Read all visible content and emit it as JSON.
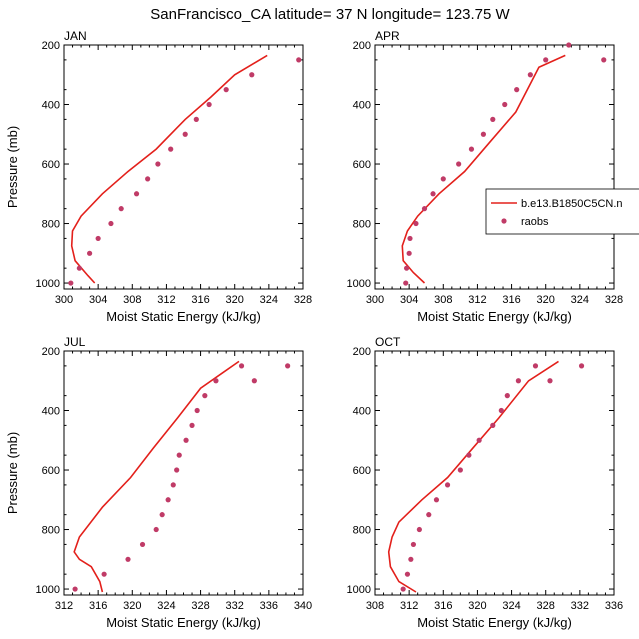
{
  "figure_title": "SanFrancisco_CA  latitude= 37 N longitude= 123.75 W",
  "legend": {
    "model_label": "b.e13.B1850C5CN.n",
    "obs_label": "raobs"
  },
  "colors": {
    "model": "#e3201b",
    "obs": "#c03b67"
  },
  "chart_data": [
    {
      "type": "line",
      "title": "JAN",
      "xlabel": "Moist Static Energy (kJ/kg)",
      "ylabel": "Pressure (mb)",
      "xlim": [
        300,
        328
      ],
      "ylim": [
        1020,
        200
      ],
      "yreverse": true,
      "xticks": [
        300,
        304,
        308,
        312,
        316,
        320,
        324,
        328
      ],
      "yticks": [
        200,
        400,
        600,
        800,
        1000
      ],
      "model": {
        "x": [
          303.6,
          302.8,
          301.3,
          300.9,
          301.0,
          302.0,
          304.5,
          307.5,
          310.8,
          314.2,
          317.2,
          320.0,
          323.8
        ],
        "y": [
          1000,
          975,
          925,
          875,
          825,
          775,
          700,
          625,
          550,
          450,
          375,
          300,
          235
        ]
      },
      "raobs": {
        "x": [
          300.8,
          301.8,
          303.0,
          304.0,
          305.5,
          306.7,
          308.5,
          309.8,
          311.0,
          312.5,
          314.2,
          315.5,
          317.0,
          319.0,
          322.0,
          327.5
        ],
        "y": [
          1000,
          950,
          900,
          850,
          800,
          750,
          700,
          650,
          600,
          550,
          500,
          450,
          400,
          350,
          300,
          250
        ]
      }
    },
    {
      "type": "line",
      "title": "APR",
      "xlabel": "Moist Static Energy (kJ/kg)",
      "ylabel": "",
      "xlim": [
        300,
        328
      ],
      "ylim": [
        1020,
        200
      ],
      "yreverse": true,
      "xticks": [
        300,
        304,
        308,
        312,
        316,
        320,
        324,
        328
      ],
      "yticks": [
        200,
        400,
        600,
        800,
        1000
      ],
      "model": {
        "x": [
          305.8,
          304.5,
          303.3,
          303.2,
          303.8,
          305.0,
          307.5,
          310.5,
          313.5,
          316.5,
          319.2,
          322.3
        ],
        "y": [
          1000,
          965,
          925,
          875,
          825,
          775,
          700,
          625,
          525,
          425,
          275,
          235
        ]
      },
      "raobs": {
        "x": [
          303.6,
          303.7,
          304.0,
          304.1,
          304.8,
          305.8,
          306.8,
          308.0,
          309.8,
          311.3,
          312.7,
          313.8,
          315.2,
          316.6,
          318.2,
          320.0,
          322.7,
          326.8
        ],
        "y": [
          1000,
          950,
          900,
          850,
          800,
          750,
          700,
          650,
          600,
          550,
          500,
          450,
          400,
          350,
          300,
          250,
          200,
          250
        ]
      }
    },
    {
      "type": "line",
      "title": "JUL",
      "xlabel": "Moist Static Energy (kJ/kg)",
      "ylabel": "Pressure (mb)",
      "xlim": [
        312,
        340
      ],
      "ylim": [
        1020,
        200
      ],
      "yreverse": true,
      "xticks": [
        312,
        316,
        320,
        324,
        328,
        332,
        336,
        340
      ],
      "yticks": [
        200,
        400,
        600,
        800,
        1000
      ],
      "model": {
        "x": [
          316.5,
          316.2,
          315.2,
          313.8,
          313.2,
          313.8,
          316.5,
          319.8,
          322.5,
          325.3,
          328.0,
          330.5,
          332.5
        ],
        "y": [
          1010,
          975,
          925,
          900,
          875,
          825,
          725,
          625,
          525,
          425,
          325,
          275,
          235
        ]
      },
      "raobs": {
        "x": [
          313.3,
          316.7,
          319.5,
          321.2,
          322.8,
          323.5,
          324.2,
          324.8,
          325.2,
          325.5,
          326.3,
          327.0,
          327.6,
          328.5,
          329.8,
          332.8,
          334.3,
          338.2
        ],
        "y": [
          1000,
          950,
          900,
          850,
          800,
          750,
          700,
          650,
          600,
          550,
          500,
          450,
          400,
          350,
          300,
          250,
          300,
          250
        ]
      }
    },
    {
      "type": "line",
      "title": "OCT",
      "xlabel": "Moist Static Energy (kJ/kg)",
      "ylabel": "",
      "xlim": [
        308,
        336
      ],
      "ylim": [
        1020,
        200
      ],
      "yreverse": true,
      "xticks": [
        308,
        312,
        316,
        320,
        324,
        328,
        332,
        336
      ],
      "yticks": [
        200,
        400,
        600,
        800,
        1000
      ],
      "model": {
        "x": [
          312.8,
          310.8,
          309.8,
          309.6,
          310.0,
          310.8,
          313.5,
          316.5,
          319.5,
          322.5,
          326.0,
          329.5
        ],
        "y": [
          1010,
          975,
          925,
          875,
          825,
          775,
          700,
          625,
          525,
          425,
          300,
          235
        ]
      },
      "raobs": {
        "x": [
          311.3,
          311.8,
          312.2,
          312.5,
          313.2,
          314.3,
          315.2,
          316.5,
          318.0,
          319.0,
          320.2,
          321.8,
          322.8,
          323.5,
          324.8,
          326.8,
          328.5,
          332.2
        ],
        "y": [
          1000,
          950,
          900,
          850,
          800,
          750,
          700,
          650,
          600,
          550,
          500,
          450,
          400,
          350,
          300,
          250,
          300,
          250
        ]
      }
    }
  ]
}
